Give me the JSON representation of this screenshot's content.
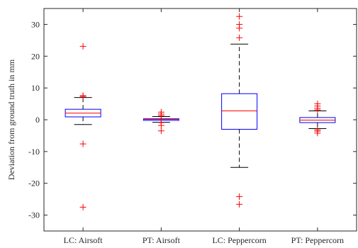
{
  "chart_data": {
    "type": "boxplot",
    "title": "",
    "xlabel": "",
    "ylabel": "Deviation from ground truth in mm",
    "ylim": [
      -35,
      35
    ],
    "yticks": [
      -30,
      -20,
      -10,
      0,
      10,
      20,
      30
    ],
    "grid": false,
    "categories": [
      "LC: Airsoft",
      "PT: Airsoft",
      "LC: Peppercorn",
      "PT: Peppercorn"
    ],
    "boxes": [
      {
        "category": "LC: Airsoft",
        "q1": 0.9,
        "median": 2.1,
        "q3": 3.3,
        "whisker_low": -1.5,
        "whisker_high": 7.0,
        "outliers": [
          23.1,
          7.6,
          7.3,
          -7.6,
          -27.5
        ]
      },
      {
        "category": "PT: Airsoft",
        "q1": -0.2,
        "median": 0.1,
        "q3": 0.3,
        "whisker_low": -0.8,
        "whisker_high": 1.0,
        "outliers": [
          2.4,
          1.8,
          1.3,
          -0.9,
          -1.8,
          -3.5
        ]
      },
      {
        "category": "LC: Peppercorn",
        "q1": -3.0,
        "median": 2.8,
        "q3": 8.2,
        "whisker_low": -15.0,
        "whisker_high": 23.8,
        "outliers": [
          32.5,
          30.0,
          28.8,
          25.8,
          -24.2,
          -26.6
        ]
      },
      {
        "category": "PT: Peppercorn",
        "q1": -0.9,
        "median": -0.1,
        "q3": 0.7,
        "whisker_low": -2.8,
        "whisker_high": 2.8,
        "outliers": [
          5.0,
          4.3,
          3.6,
          3.1,
          -3.2,
          -3.6,
          -4.2
        ]
      }
    ],
    "colors": {
      "box": "#0000ff",
      "median": "#ff0000",
      "outlier": "#ff0000",
      "whisker": "#000000",
      "axis": "#262626"
    }
  }
}
